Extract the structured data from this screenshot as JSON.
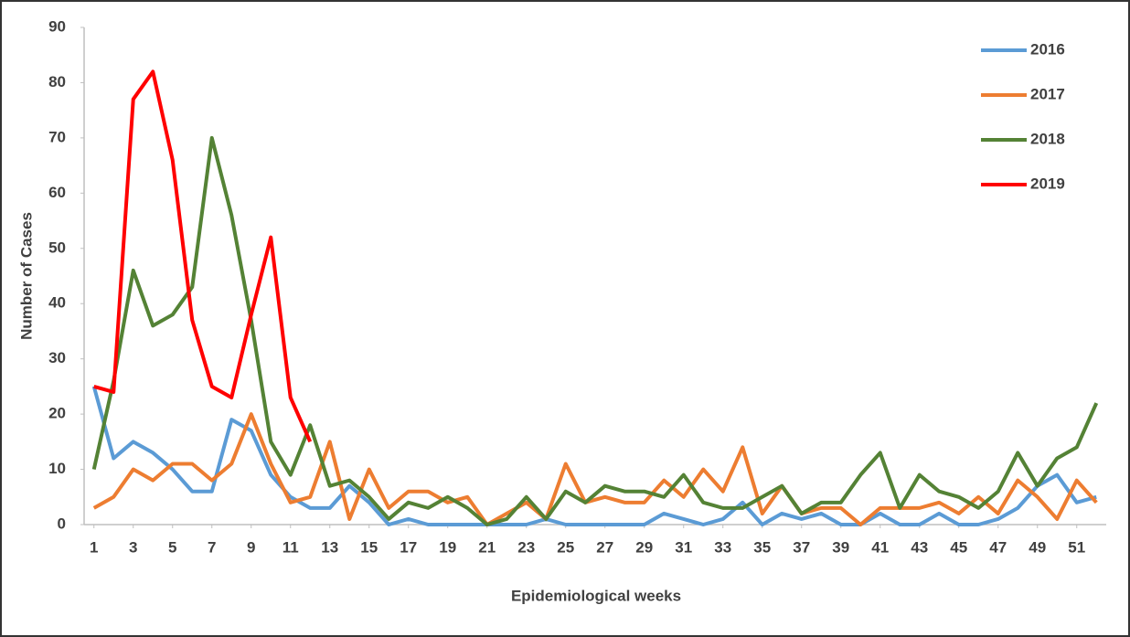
{
  "chart_data": {
    "type": "line",
    "x_label": "Epidemiological weeks",
    "y_label": "Number of Cases",
    "x": [
      1,
      2,
      3,
      4,
      5,
      6,
      7,
      8,
      9,
      10,
      11,
      12,
      13,
      14,
      15,
      16,
      17,
      18,
      19,
      20,
      21,
      22,
      23,
      24,
      25,
      26,
      27,
      28,
      29,
      30,
      31,
      32,
      33,
      34,
      35,
      36,
      37,
      38,
      39,
      40,
      41,
      42,
      43,
      44,
      45,
      46,
      47,
      48,
      49,
      50,
      51,
      52
    ],
    "xlim": [
      0.5,
      52.5
    ],
    "xticks": [
      1,
      3,
      5,
      7,
      9,
      11,
      13,
      15,
      17,
      19,
      21,
      23,
      25,
      27,
      29,
      31,
      33,
      35,
      37,
      39,
      41,
      43,
      45,
      47,
      49,
      51
    ],
    "ylim": [
      0,
      90
    ],
    "yticks": [
      0,
      10,
      20,
      30,
      40,
      50,
      60,
      70,
      80,
      90
    ],
    "grid": false,
    "legend": "upper right",
    "series": [
      {
        "name": "2016",
        "color": "#5b9bd5",
        "values": [
          25,
          12,
          15,
          13,
          10,
          6,
          6,
          19,
          17,
          9,
          5,
          3,
          3,
          7,
          4,
          0,
          1,
          0,
          0,
          0,
          0,
          0,
          0,
          1,
          0,
          0,
          0,
          0,
          0,
          2,
          1,
          0,
          1,
          4,
          0,
          2,
          1,
          2,
          0,
          0,
          2,
          0,
          0,
          2,
          0,
          0,
          1,
          3,
          7,
          9,
          4,
          5
        ]
      },
      {
        "name": "2017",
        "color": "#ed7d31",
        "values": [
          3,
          5,
          10,
          8,
          11,
          11,
          8,
          11,
          20,
          11,
          4,
          5,
          15,
          1,
          10,
          3,
          6,
          6,
          4,
          5,
          0,
          2,
          4,
          1,
          11,
          4,
          5,
          4,
          4,
          8,
          5,
          10,
          6,
          14,
          2,
          7,
          2,
          3,
          3,
          0,
          3,
          3,
          3,
          4,
          2,
          5,
          2,
          8,
          5,
          1,
          8,
          4
        ]
      },
      {
        "name": "2018",
        "color": "#548235",
        "values": [
          10,
          26,
          46,
          36,
          38,
          43,
          70,
          56,
          37,
          15,
          9,
          18,
          7,
          8,
          5,
          1,
          4,
          3,
          5,
          3,
          0,
          1,
          5,
          1,
          6,
          4,
          7,
          6,
          6,
          5,
          9,
          4,
          3,
          3,
          5,
          7,
          2,
          4,
          4,
          9,
          13,
          3,
          9,
          6,
          5,
          3,
          6,
          13,
          7,
          12,
          14,
          22
        ]
      },
      {
        "name": "2019",
        "color": "#ff0000",
        "values": [
          25,
          24,
          77,
          82,
          66,
          37,
          25,
          23,
          38,
          52,
          23,
          15,
          null,
          null,
          null,
          null,
          null,
          null,
          null,
          null,
          null,
          null,
          null,
          null,
          null,
          null,
          null,
          null,
          null,
          null,
          null,
          null,
          null,
          null,
          null,
          null,
          null,
          null,
          null,
          null,
          null,
          null,
          null,
          null,
          null,
          null,
          null,
          null,
          null,
          null,
          null,
          null
        ]
      }
    ]
  }
}
